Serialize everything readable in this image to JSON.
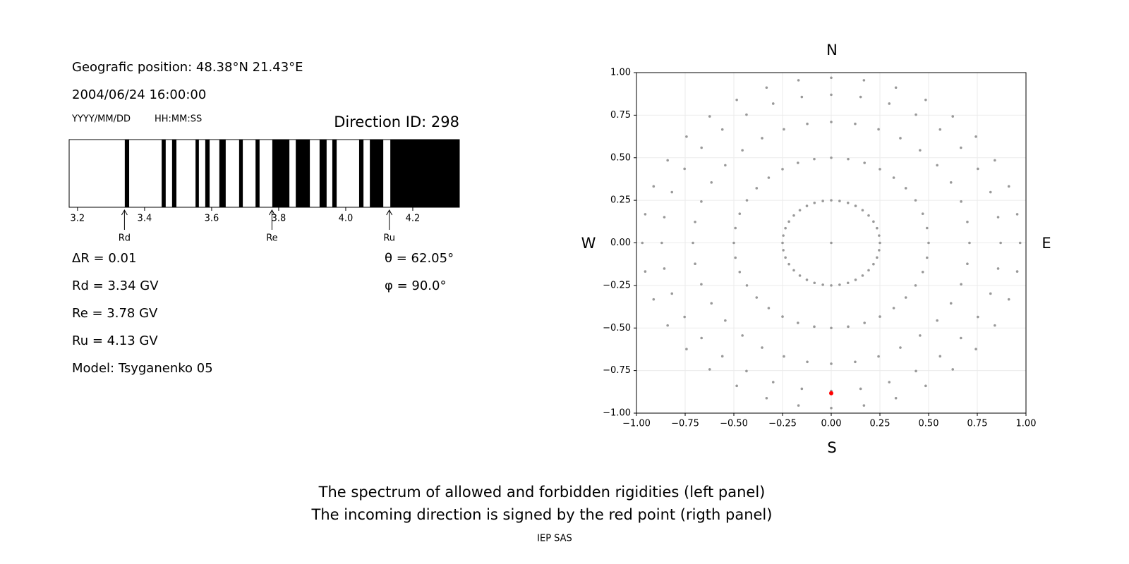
{
  "info": {
    "position": "Geografic position: 48.38°N 21.43°E",
    "datetime": "2004/06/24 16:00:00",
    "date_format": "YYYY/MM/DD",
    "time_format": "HH:MM:SS",
    "direction_id": "Direction ID: 298",
    "delta_r": "ΔR = 0.01",
    "rd": "Rd = 3.34 GV",
    "re": "Re = 3.78 GV",
    "ru": "Ru = 4.13 GV",
    "model": "Model: Tsyganenko 05",
    "theta": "θ = 62.05°",
    "phi": "φ = 90.0°"
  },
  "chart_data": [
    {
      "type": "spectrum",
      "xlim": [
        3.175,
        4.339
      ],
      "xticks": [
        3.2,
        3.4,
        3.6,
        3.8,
        {
          "value": 4,
          "label": "4.0"
        },
        4.2
      ],
      "color": "#000000",
      "intervals": [
        [
          3.341,
          3.354
        ],
        [
          3.451,
          3.463
        ],
        [
          3.482,
          3.495
        ],
        [
          3.552,
          3.562
        ],
        [
          3.581,
          3.594
        ],
        [
          3.623,
          3.642
        ],
        [
          3.682,
          3.693
        ],
        [
          3.731,
          3.743
        ],
        [
          3.781,
          3.832
        ],
        [
          3.851,
          3.893
        ],
        [
          3.922,
          3.943
        ],
        [
          3.96,
          3.973
        ],
        [
          4.04,
          4.053
        ],
        [
          4.072,
          4.112
        ],
        [
          4.133,
          4.339
        ]
      ],
      "markers": [
        {
          "label": "Rd",
          "value": 3.34
        },
        {
          "label": "Re",
          "value": 3.78
        },
        {
          "label": "Ru",
          "value": 4.13
        }
      ]
    },
    {
      "type": "scatter",
      "xlim": [
        -1,
        1
      ],
      "ylim": [
        -1,
        1
      ],
      "grid": true,
      "xticks": [
        {
          "value": -1,
          "label": "−1.00"
        },
        {
          "value": -0.75,
          "label": "−0.75"
        },
        {
          "value": -0.5,
          "label": "−0.50"
        },
        {
          "value": -0.25,
          "label": "−0.25"
        },
        {
          "value": 0,
          "label": "0.00"
        },
        {
          "value": 0.25,
          "label": "0.25"
        },
        {
          "value": 0.5,
          "label": "0.50"
        },
        {
          "value": 0.75,
          "label": "0.75"
        },
        {
          "value": 1,
          "label": "1.00"
        }
      ],
      "yticks": [
        {
          "value": -1,
          "label": "−1.00"
        },
        {
          "value": -0.75,
          "label": "−0.75"
        },
        {
          "value": -0.5,
          "label": "−0.50"
        },
        {
          "value": -0.25,
          "label": "−0.25"
        },
        {
          "value": 0,
          "label": "0.00"
        },
        {
          "value": 0.25,
          "label": "0.25"
        },
        {
          "value": 0.5,
          "label": "0.50"
        },
        {
          "value": 0.75,
          "label": "0.75"
        },
        {
          "value": 1,
          "label": "1.00"
        }
      ],
      "compass": {
        "north": "N",
        "south": "S",
        "west": "W",
        "east": "E"
      },
      "series": [
        {
          "color": "#999999",
          "x": [
            0,
            0,
            0.043,
            0.086,
            0.125,
            0.161,
            0.192,
            0.217,
            0.235,
            0.246,
            0.25,
            0.246,
            0.235,
            0.217,
            0.192,
            0.161,
            0.125,
            0.086,
            0.043,
            0,
            -0.043,
            -0.086,
            -0.125,
            -0.161,
            -0.192,
            -0.217,
            -0.235,
            -0.246,
            -0.25,
            -0.246,
            -0.235,
            -0.217,
            -0.192,
            -0.161,
            -0.125,
            -0.086,
            -0.043,
            0,
            0.087,
            0.171,
            0.25,
            0.321,
            0.383,
            0.433,
            0.47,
            0.492,
            0.5,
            0.492,
            0.47,
            0.433,
            0.383,
            0.321,
            0.25,
            0.171,
            0.087,
            0,
            -0.087,
            -0.171,
            -0.25,
            -0.321,
            -0.383,
            -0.433,
            -0.47,
            -0.492,
            -0.5,
            -0.492,
            -0.47,
            -0.433,
            -0.383,
            -0.321,
            -0.25,
            -0.171,
            -0.087,
            0,
            0.123,
            0.243,
            0.355,
            0.456,
            0.544,
            0.615,
            0.667,
            0.699,
            0.71,
            0.699,
            0.667,
            0.615,
            0.544,
            0.456,
            0.355,
            0.243,
            0.123,
            0,
            -0.123,
            -0.243,
            -0.355,
            -0.456,
            -0.544,
            -0.615,
            -0.667,
            -0.699,
            -0.71,
            -0.699,
            -0.667,
            -0.615,
            -0.544,
            -0.456,
            -0.355,
            -0.243,
            -0.123,
            0,
            0.151,
            0.298,
            0.435,
            0.559,
            0.666,
            0.753,
            0.818,
            0.857,
            0.87,
            0.857,
            0.818,
            0.753,
            0.666,
            0.559,
            0.435,
            0.298,
            0.151,
            0,
            -0.151,
            -0.298,
            -0.435,
            -0.559,
            -0.666,
            -0.753,
            -0.818,
            -0.857,
            -0.87,
            -0.857,
            -0.818,
            -0.753,
            -0.666,
            -0.559,
            -0.435,
            -0.298,
            -0.151,
            0,
            0.168,
            0.332,
            0.485,
            0.624,
            0.743,
            0.84,
            0.912,
            0.955,
            0.97,
            0.955,
            0.912,
            0.84,
            0.743,
            0.624,
            0.485,
            0.332,
            0.168,
            0,
            -0.168,
            -0.332,
            -0.485,
            -0.624,
            -0.743,
            -0.84,
            -0.912,
            -0.955,
            -0.97,
            -0.955,
            -0.912,
            -0.84,
            -0.743,
            -0.624,
            -0.485,
            -0.332,
            -0.168
          ],
          "y": [
            0,
            0.25,
            0.246,
            0.235,
            0.217,
            0.192,
            0.161,
            0.125,
            0.086,
            0.043,
            0,
            -0.043,
            -0.086,
            -0.125,
            -0.161,
            -0.192,
            -0.217,
            -0.235,
            -0.246,
            -0.25,
            -0.246,
            -0.235,
            -0.217,
            -0.192,
            -0.161,
            -0.125,
            -0.086,
            -0.043,
            0,
            0.043,
            0.086,
            0.125,
            0.161,
            0.192,
            0.217,
            0.235,
            0.246,
            0.5,
            0.492,
            0.47,
            0.433,
            0.383,
            0.321,
            0.25,
            0.171,
            0.087,
            0,
            -0.087,
            -0.171,
            -0.25,
            -0.321,
            -0.383,
            -0.433,
            -0.47,
            -0.492,
            -0.5,
            -0.492,
            -0.47,
            -0.433,
            -0.383,
            -0.321,
            -0.25,
            -0.171,
            -0.087,
            0,
            0.087,
            0.171,
            0.25,
            0.321,
            0.383,
            0.433,
            0.47,
            0.492,
            0.71,
            0.699,
            0.667,
            0.615,
            0.544,
            0.456,
            0.355,
            0.243,
            0.123,
            0,
            -0.123,
            -0.243,
            -0.355,
            -0.456,
            -0.544,
            -0.615,
            -0.667,
            -0.699,
            -0.71,
            -0.699,
            -0.667,
            -0.615,
            -0.544,
            -0.456,
            -0.355,
            -0.243,
            -0.123,
            0,
            0.123,
            0.243,
            0.355,
            0.456,
            0.544,
            0.615,
            0.667,
            0.699,
            0.87,
            0.857,
            0.818,
            0.753,
            0.666,
            0.559,
            0.435,
            0.298,
            0.151,
            0,
            -0.151,
            -0.298,
            -0.435,
            -0.559,
            -0.666,
            -0.753,
            -0.818,
            -0.857,
            -0.87,
            -0.857,
            -0.818,
            -0.753,
            -0.666,
            -0.559,
            -0.435,
            -0.298,
            -0.151,
            0,
            0.151,
            0.298,
            0.435,
            0.559,
            0.666,
            0.753,
            0.818,
            0.857,
            0.97,
            0.955,
            0.912,
            0.84,
            0.743,
            0.624,
            0.485,
            0.332,
            0.168,
            0,
            -0.168,
            -0.332,
            -0.485,
            -0.624,
            -0.743,
            -0.84,
            -0.912,
            -0.955,
            -0.97,
            -0.955,
            -0.912,
            -0.84,
            -0.743,
            -0.624,
            -0.485,
            -0.332,
            -0.168,
            0,
            0.168,
            0.332,
            0.485,
            0.624,
            0.743,
            0.84,
            0.912,
            0.955
          ]
        },
        {
          "color": "#ff0000",
          "x": [
            0
          ],
          "y": [
            -0.883
          ]
        }
      ]
    }
  ],
  "caption": [
    "The spectrum of allowed and forbidden rigidities (left panel)",
    "The incoming direction is signed by the red point (rigth panel)"
  ],
  "footer": "IEP SAS"
}
